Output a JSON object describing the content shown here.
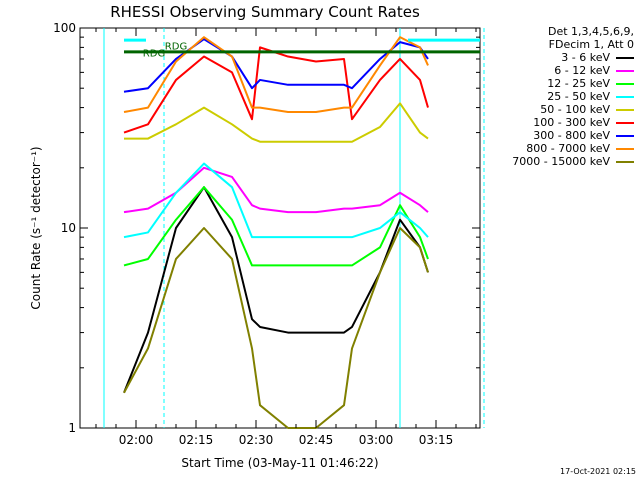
{
  "chart_data": {
    "type": "line",
    "title": "RHESSI Observing Summary Count Rates",
    "xlabel": "Start Time (03-May-11 01:46:22)",
    "ylabel": "Count Rate (s⁻¹ detector⁻¹)",
    "yscale": "log",
    "ylim": [
      1,
      100
    ],
    "xlim": [
      "01:46",
      "03:26"
    ],
    "x_ticks": [
      "02:00",
      "02:15",
      "02:30",
      "02:45",
      "03:00",
      "03:15"
    ],
    "y_ticks": [
      "1",
      "10",
      "100"
    ],
    "x_minutes": [
      -3,
      3,
      10,
      17,
      24,
      29,
      31,
      38,
      45,
      52,
      54,
      61,
      66,
      71,
      73
    ],
    "legend_header": [
      "Det 1,3,4,5,6,9,",
      "FDecim 1, Att 0"
    ],
    "series": [
      {
        "name": "3 - 6 keV",
        "color": "#000000",
        "values": [
          1.5,
          3.0,
          10,
          16,
          9,
          3.5,
          3.2,
          3.0,
          3.0,
          3.0,
          3.2,
          6,
          11,
          8,
          6
        ]
      },
      {
        "name": "6 - 12 keV",
        "color": "#ff00ff",
        "values": [
          12,
          12.5,
          15,
          20,
          18,
          13,
          12.5,
          12,
          12,
          12.5,
          12.5,
          13,
          15,
          13,
          12
        ]
      },
      {
        "name": "12 - 25 keV",
        "color": "#00ff00",
        "values": [
          6.5,
          7,
          11,
          16,
          11,
          6.5,
          6.5,
          6.5,
          6.5,
          6.5,
          6.5,
          8,
          13,
          9,
          7
        ]
      },
      {
        "name": "25 - 50 keV",
        "color": "#00ffff",
        "values": [
          9,
          9.5,
          15,
          21,
          16,
          9,
          9,
          9,
          9,
          9,
          9,
          10,
          12,
          10,
          9
        ]
      },
      {
        "name": "50 - 100 keV",
        "color": "#cccc00",
        "values": [
          28,
          28,
          33,
          40,
          33,
          28,
          27,
          27,
          27,
          27,
          27,
          32,
          42,
          30,
          28
        ]
      },
      {
        "name": "100 - 300 keV",
        "color": "#ff0000",
        "values": [
          30,
          33,
          55,
          72,
          60,
          35,
          80,
          72,
          68,
          70,
          35,
          55,
          70,
          55,
          40
        ]
      },
      {
        "name": "300 - 800 keV",
        "color": "#0000ff",
        "values": [
          48,
          50,
          70,
          88,
          72,
          50,
          55,
          52,
          52,
          52,
          50,
          70,
          85,
          80,
          70
        ]
      },
      {
        "name": "800 - 7000 keV",
        "color": "#ff8800",
        "values": [
          38,
          40,
          68,
          90,
          72,
          40,
          40,
          38,
          38,
          40,
          40,
          65,
          90,
          80,
          65
        ]
      },
      {
        "name": "7000 - 15000 keV",
        "color": "#808000",
        "values": [
          1.5,
          2.5,
          7,
          10,
          7,
          2.5,
          1.3,
          1.0,
          1.0,
          1.3,
          2.5,
          6,
          10,
          8,
          6
        ]
      }
    ],
    "grid": false,
    "legend_placement": "right",
    "annotations": [
      {
        "text": "RDG",
        "minute": 4.5,
        "y": 72,
        "color": "#006400"
      },
      {
        "text": "RDG",
        "minute": 10,
        "y": 78,
        "color": "#006400"
      }
    ],
    "overlay_bars": [
      {
        "color": "#00ffff",
        "start": -3,
        "end": 2.5,
        "y": 87
      },
      {
        "color": "#00ffff",
        "start": 68,
        "end": 88,
        "y": 87
      },
      {
        "color": "#006400",
        "start": -3,
        "end": 88,
        "y": 76
      }
    ],
    "vertical_lines": [
      {
        "color": "#00ffff",
        "minute": -8,
        "style": "solid"
      },
      {
        "color": "#00ffff",
        "minute": 7,
        "style": "dashed"
      },
      {
        "color": "#00ffff",
        "minute": 66,
        "style": "solid"
      },
      {
        "color": "#00ffff",
        "minute": 87,
        "style": "dashed"
      }
    ]
  },
  "footer": {
    "timestamp": "17-Oct-2021 02:15"
  }
}
